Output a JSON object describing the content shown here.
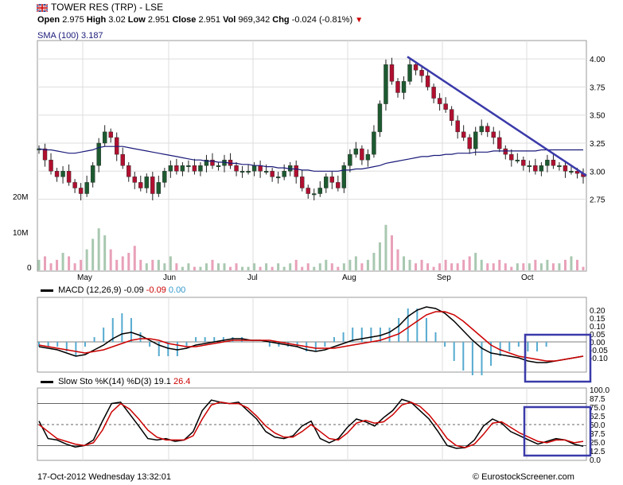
{
  "header": {
    "title": "TOWER RES (TRP) - LSE",
    "open_label": "Open",
    "open": "2.975",
    "high_label": "High",
    "high": "3.02",
    "low_label": "Low",
    "low": "2.951",
    "close_label": "Close",
    "close": "2.951",
    "vol_label": "Vol",
    "vol": "969,342",
    "chg_label": "Chg",
    "chg": "-0.024 (-0.81%)",
    "chg_color": "#cc0000"
  },
  "legends": {
    "sma": "SMA (100) 3.187",
    "sma_color": "#1a1a7a",
    "macd_label": "MACD (12,26,9)",
    "macd_v1": "-0.09",
    "macd_v2": "-0.09",
    "macd_v3": "0.00",
    "sto_label": "Slow Sto %K(14) %D(3)",
    "sto_v1": "19.1",
    "sto_v2": "26.4"
  },
  "footer": {
    "date": "17-Oct-2012 Wednesday 13:32:01",
    "copyright": "© EurostockScreener.com"
  },
  "chart_data": [
    {
      "type": "candlestick",
      "title": "TOWER RES (TRP) - LSE",
      "x_tick_labels": [
        "May",
        "Jun",
        "Jul",
        "Aug",
        "Sep",
        "Oct"
      ],
      "y_tick_labels": [
        "4.00",
        "3.75",
        "3.50",
        "3.25",
        "3.00",
        "2.75"
      ],
      "ylim": [
        2.4,
        4.1
      ],
      "volume_tick_labels": [
        "20M",
        "10M",
        "0"
      ],
      "trendline": {
        "from": [
          "mid-Aug",
          4.02
        ],
        "to": [
          "mid-Oct",
          2.98
        ],
        "color": "#3a3aaa"
      },
      "close_series": [
        3.2,
        3.1,
        3.0,
        2.95,
        3.0,
        2.9,
        2.85,
        2.8,
        2.9,
        3.05,
        3.25,
        3.35,
        3.3,
        3.15,
        3.05,
        2.95,
        2.9,
        2.85,
        2.95,
        2.8,
        2.9,
        3.0,
        3.05,
        3.0,
        3.05,
        3.05,
        3.0,
        3.05,
        3.1,
        3.05,
        3.05,
        3.1,
        3.05,
        3.0,
        3.0,
        3.0,
        3.05,
        3.0,
        3.0,
        2.95,
        2.95,
        3.0,
        3.05,
        2.95,
        2.85,
        2.8,
        2.8,
        2.85,
        2.95,
        2.9,
        2.85,
        3.05,
        3.15,
        3.2,
        3.1,
        3.15,
        3.35,
        3.6,
        3.95,
        3.8,
        3.7,
        3.8,
        3.95,
        3.9,
        3.85,
        3.75,
        3.65,
        3.6,
        3.55,
        3.45,
        3.35,
        3.3,
        3.2,
        3.35,
        3.4,
        3.35,
        3.3,
        3.2,
        3.15,
        3.1,
        3.1,
        3.05,
        3.05,
        3.0,
        3.05,
        3.1,
        3.05,
        3.05,
        3.0,
        3.0,
        2.98,
        2.95
      ],
      "sma100_series": [
        3.2,
        3.19,
        3.19,
        3.18,
        3.17,
        3.16,
        3.16,
        3.17,
        3.18,
        3.19,
        3.21,
        3.22,
        3.22,
        3.22,
        3.22,
        3.21,
        3.2,
        3.19,
        3.18,
        3.17,
        3.16,
        3.15,
        3.14,
        3.13,
        3.12,
        3.11,
        3.1,
        3.1,
        3.09,
        3.09,
        3.08,
        3.08,
        3.07,
        3.07,
        3.06,
        3.06,
        3.05,
        3.05,
        3.04,
        3.04,
        3.03,
        3.03,
        3.02,
        3.02,
        3.01,
        3.01,
        3.0,
        3.0,
        3.0,
        3.0,
        3.0,
        3.01,
        3.01,
        3.02,
        3.02,
        3.03,
        3.04,
        3.05,
        3.07,
        3.08,
        3.09,
        3.1,
        3.11,
        3.12,
        3.13,
        3.13,
        3.14,
        3.14,
        3.15,
        3.15,
        3.16,
        3.16,
        3.16,
        3.17,
        3.17,
        3.17,
        3.18,
        3.18,
        3.18,
        3.18,
        3.18,
        3.18,
        3.18,
        3.18,
        3.19,
        3.19,
        3.19,
        3.19,
        3.19,
        3.19,
        3.19,
        3.19
      ],
      "volume_series_M": [
        3,
        4,
        2,
        3,
        5,
        4,
        2,
        3,
        6,
        9,
        12,
        10,
        6,
        3,
        4,
        5,
        7,
        3,
        2,
        3,
        3,
        2,
        4,
        2,
        1,
        2,
        1,
        1,
        2,
        3,
        2,
        2,
        1,
        2,
        1,
        1,
        2,
        1,
        2,
        1,
        2,
        1,
        2,
        3,
        1,
        2,
        1,
        2,
        3,
        2,
        1,
        2,
        3,
        4,
        2,
        3,
        5,
        8,
        13,
        10,
        6,
        4,
        3,
        2,
        3,
        2,
        1,
        2,
        3,
        2,
        2,
        3,
        4,
        5,
        3,
        2,
        2,
        3,
        2,
        1,
        2,
        2,
        2,
        3,
        2,
        3,
        2,
        2,
        3,
        4,
        3,
        1
      ]
    },
    {
      "type": "line",
      "title": "MACD (12,26,9)",
      "y_tick_labels": [
        "0.20",
        "0.15",
        "0.10",
        "0.05",
        "0.00",
        "-0.05",
        "-0.10"
      ],
      "ylim": [
        -0.16,
        0.24
      ],
      "series": [
        {
          "name": "MACD",
          "color": "#000000",
          "values": [
            -0.03,
            -0.04,
            -0.05,
            -0.07,
            -0.09,
            -0.08,
            -0.05,
            -0.02,
            0.02,
            0.05,
            0.06,
            0.04,
            0.01,
            -0.02,
            -0.04,
            -0.05,
            -0.04,
            -0.02,
            -0.01,
            0.0,
            0.01,
            0.02,
            0.02,
            0.01,
            0.01,
            0.0,
            -0.01,
            -0.02,
            -0.03,
            -0.05,
            -0.06,
            -0.05,
            -0.03,
            -0.01,
            0.01,
            0.02,
            0.03,
            0.04,
            0.06,
            0.1,
            0.16,
            0.2,
            0.22,
            0.21,
            0.18,
            0.13,
            0.07,
            0.01,
            -0.04,
            -0.07,
            -0.08,
            -0.09,
            -0.1,
            -0.12,
            -0.13,
            -0.13,
            -0.12,
            -0.11,
            -0.1,
            -0.09
          ]
        },
        {
          "name": "Signal",
          "color": "#cc0000",
          "values": [
            -0.02,
            -0.03,
            -0.04,
            -0.05,
            -0.06,
            -0.07,
            -0.06,
            -0.05,
            -0.03,
            -0.01,
            0.01,
            0.02,
            0.02,
            0.01,
            -0.01,
            -0.02,
            -0.03,
            -0.03,
            -0.02,
            -0.01,
            0.0,
            0.01,
            0.01,
            0.01,
            0.01,
            0.01,
            0.0,
            -0.01,
            -0.02,
            -0.03,
            -0.04,
            -0.04,
            -0.04,
            -0.03,
            -0.02,
            -0.01,
            0.0,
            0.01,
            0.03,
            0.05,
            0.09,
            0.13,
            0.17,
            0.19,
            0.19,
            0.17,
            0.13,
            0.08,
            0.03,
            -0.02,
            -0.05,
            -0.07,
            -0.09,
            -0.1,
            -0.11,
            -0.12,
            -0.12,
            -0.11,
            -0.1,
            -0.09
          ]
        }
      ]
    },
    {
      "type": "line",
      "title": "Slow Sto %K(14) %D(3)",
      "y_tick_labels": [
        "100.0",
        "87.5",
        "75.0",
        "62.5",
        "50.0",
        "37.5",
        "25.0",
        "12.5",
        "0.0"
      ],
      "ylim": [
        0,
        100
      ],
      "series": [
        {
          "name": "%K",
          "color": "#000000",
          "values": [
            55,
            30,
            28,
            22,
            18,
            20,
            28,
            55,
            80,
            82,
            65,
            48,
            30,
            28,
            30,
            26,
            28,
            40,
            70,
            85,
            82,
            80,
            82,
            70,
            58,
            40,
            32,
            30,
            34,
            48,
            55,
            30,
            24,
            30,
            46,
            58,
            54,
            48,
            60,
            70,
            86,
            82,
            70,
            58,
            40,
            20,
            16,
            17,
            28,
            48,
            58,
            52,
            40,
            34,
            28,
            22,
            26,
            30,
            28,
            22,
            19
          ]
        },
        {
          "name": "%D",
          "color": "#cc0000",
          "values": [
            50,
            40,
            30,
            26,
            22,
            20,
            24,
            42,
            68,
            80,
            72,
            58,
            42,
            32,
            28,
            28,
            28,
            34,
            58,
            78,
            82,
            80,
            80,
            74,
            62,
            48,
            38,
            32,
            32,
            40,
            50,
            40,
            30,
            28,
            38,
            52,
            56,
            52,
            54,
            64,
            78,
            82,
            76,
            64,
            48,
            30,
            20,
            17,
            22,
            36,
            52,
            54,
            46,
            38,
            32,
            26,
            24,
            28,
            28,
            24,
            26
          ]
        }
      ],
      "reference_lines": [
        20,
        50,
        80
      ]
    }
  ]
}
